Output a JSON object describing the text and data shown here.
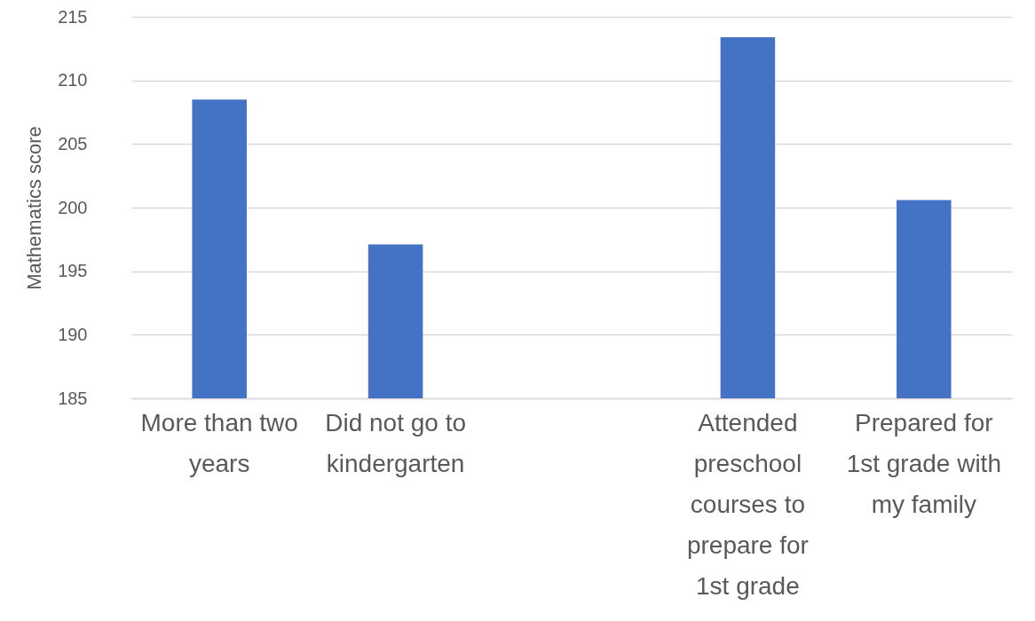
{
  "chart_data": {
    "type": "bar",
    "ylabel": "Mathematics score",
    "categories": [
      "More than two years",
      "Did not go to kindergarten",
      null,
      "Attended preschool courses to prepare for 1st grade",
      "Prepared for 1st grade with my family"
    ],
    "values": [
      208.5,
      197.1,
      null,
      213.4,
      200.6
    ],
    "color": "#4472c4",
    "ylim": [
      185,
      215
    ],
    "yticks": [
      185,
      190,
      195,
      200,
      205,
      210,
      215
    ],
    "grid": "y"
  }
}
